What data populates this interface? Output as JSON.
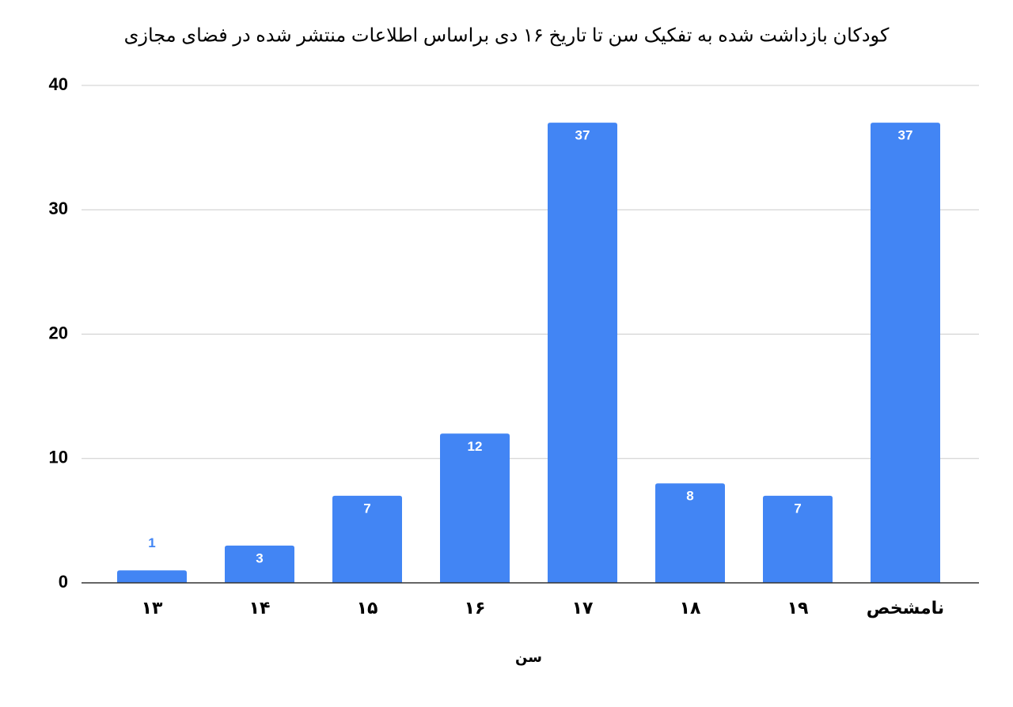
{
  "chart_data": {
    "type": "bar",
    "title": "کودکان بازداشت شده به تفکیک سن تا تاریخ ۱۶ دی براساس اطلاعات منتشر شده در فضای مجازی",
    "x_label": "سن",
    "categories": [
      "۱۳",
      "۱۴",
      "۱۵",
      "۱۶",
      "۱۷",
      "۱۸",
      "۱۹",
      "نامشخص"
    ],
    "values": [
      1,
      3,
      7,
      12,
      37,
      8,
      7,
      37
    ],
    "color": "#4285f4",
    "ylim": [
      0,
      40
    ],
    "yticks": [
      0,
      10,
      20,
      30,
      40
    ],
    "grid": true
  }
}
